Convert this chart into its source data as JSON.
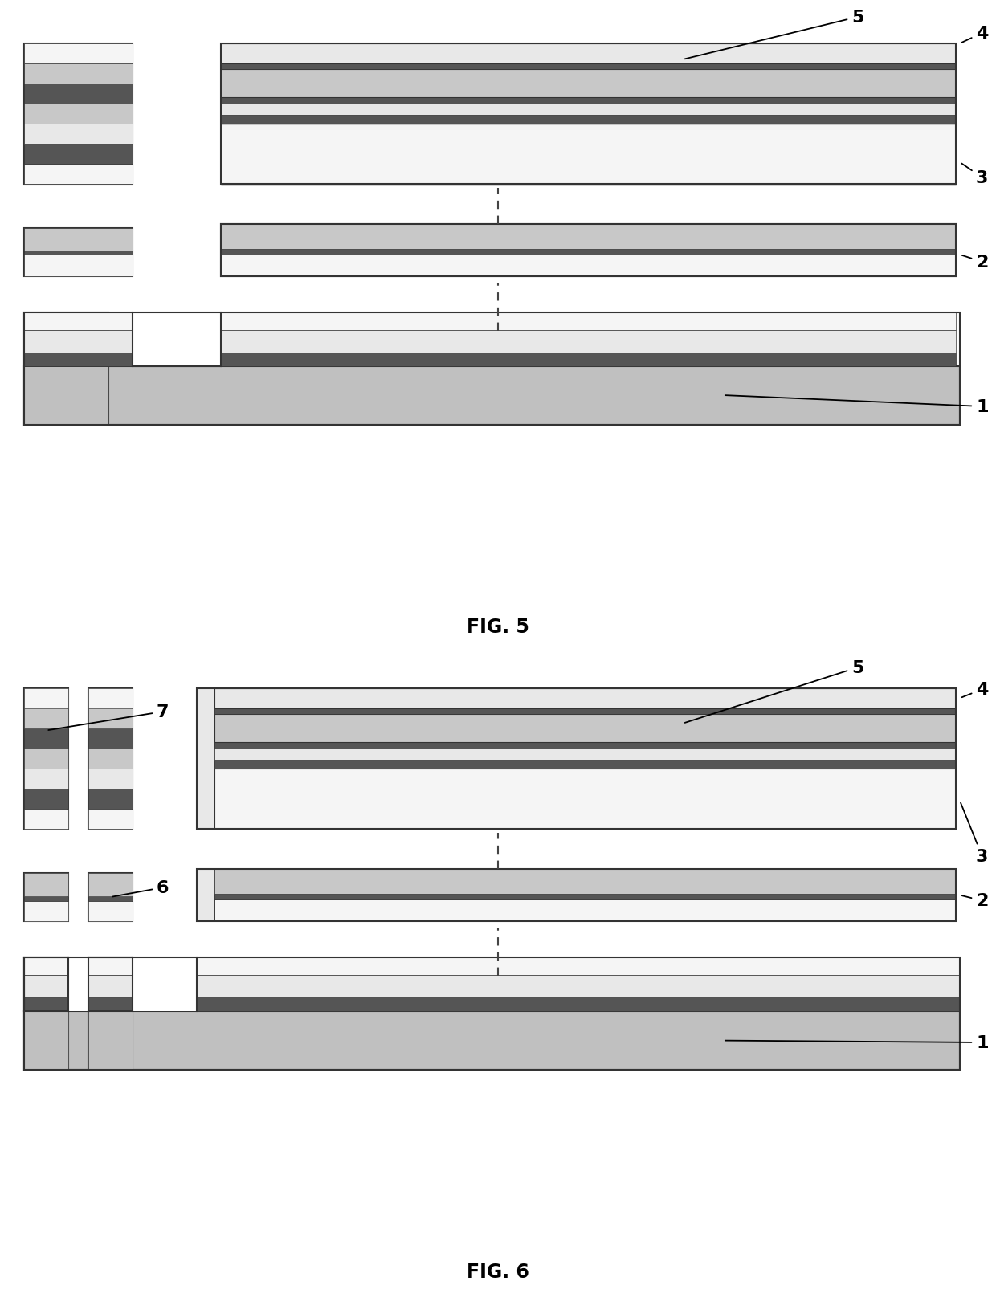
{
  "fig_width": 12.4,
  "fig_height": 16.06,
  "background": "#ffffff",
  "colors": {
    "c_light": "#e8e8e8",
    "c_medium": "#c8c8c8",
    "c_dark": "#555555",
    "c_white": "#f5f5f5",
    "c_substrate": "#c0c0c0",
    "c_black": "#111111",
    "c_border": "#333333"
  },
  "fig5_title": "FIG. 5",
  "fig6_title": "FIG. 6"
}
